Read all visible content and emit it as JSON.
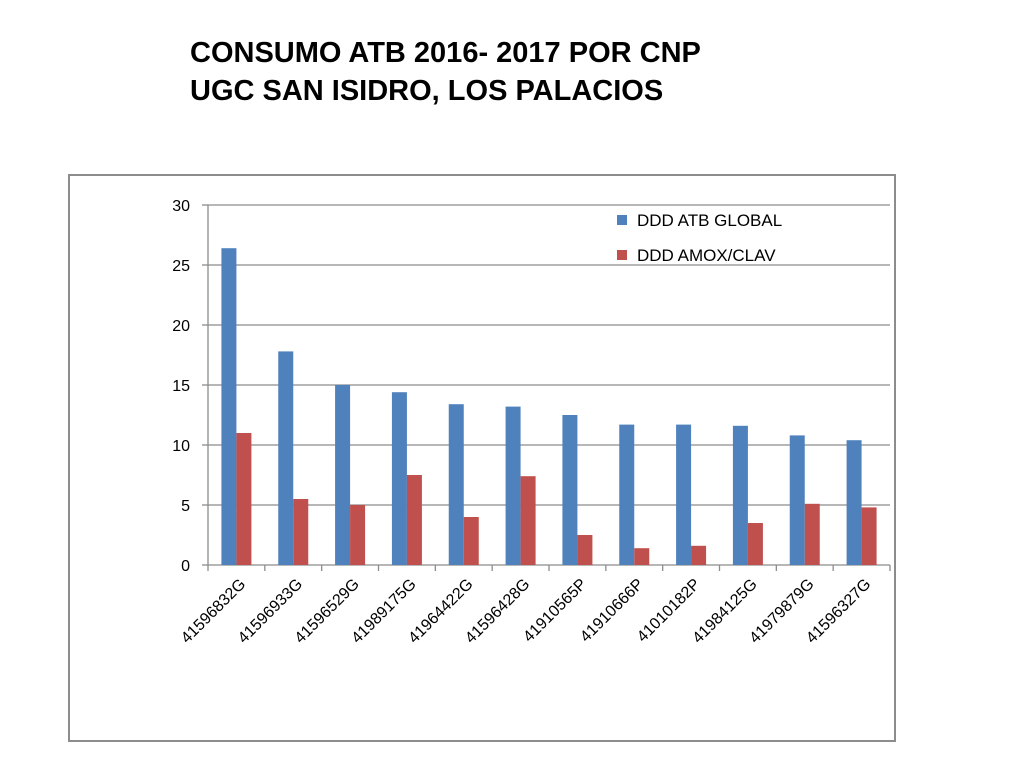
{
  "title": {
    "line1": "CONSUMO ATB 2016- 2017 POR CNP",
    "line2": "UGC SAN ISIDRO, LOS PALACIOS"
  },
  "chart_data": {
    "type": "bar",
    "categories": [
      "41596832G",
      "41596933G",
      "41596529G",
      "41989175G",
      "41964422G",
      "41596428G",
      "41910565P",
      "41910666P",
      "41010182P",
      "41984125G",
      "41979879G",
      "41596327G"
    ],
    "series": [
      {
        "name": "DDD ATB GLOBAL",
        "color": "#4f81bd",
        "values": [
          26.4,
          17.8,
          15.0,
          14.4,
          13.4,
          13.2,
          12.5,
          11.7,
          11.7,
          11.6,
          10.8,
          10.4
        ]
      },
      {
        "name": "DDD AMOX/CLAV",
        "color": "#c0504d",
        "values": [
          11.0,
          5.5,
          5.0,
          7.5,
          4.0,
          7.4,
          2.5,
          1.4,
          1.6,
          3.5,
          5.1,
          4.8
        ]
      }
    ],
    "yticks": [
      0,
      5,
      10,
      15,
      20,
      25,
      30
    ],
    "ylim": [
      0,
      30
    ],
    "grid": true,
    "legend": "top-right",
    "xlabel": "",
    "ylabel": ""
  }
}
